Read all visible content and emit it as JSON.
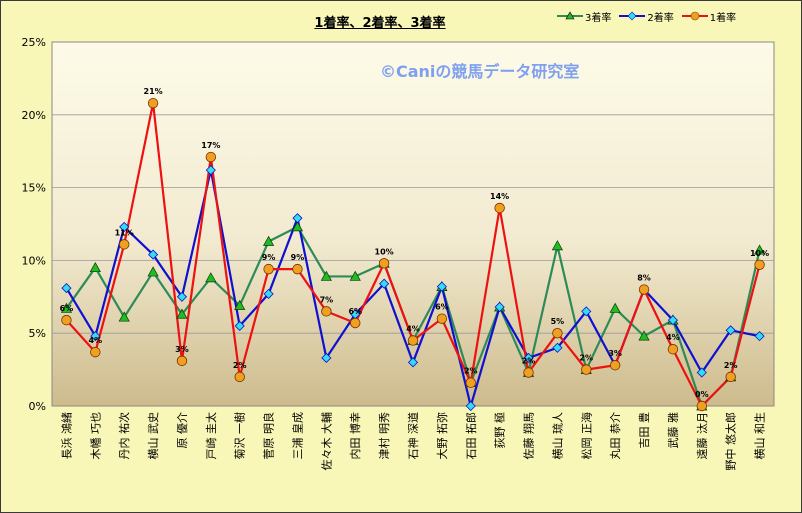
{
  "chart_data": {
    "type": "line",
    "title": "1着率、2着率、3着率",
    "watermark": "©Caniの競馬データ研究室",
    "ylim": [
      0,
      25
    ],
    "yticks": [
      "0%",
      "5%",
      "10%",
      "15%",
      "20%",
      "25%"
    ],
    "grid": "horizontal",
    "legend_position": "top-right",
    "categories": [
      "長浜 鴻緒",
      "木幡 巧也",
      "丹内 祐次",
      "横山 武史",
      "原 優介",
      "戸崎 圭太",
      "菊沢 一樹",
      "菅原 明良",
      "三浦 皇成",
      "佐々木 大輔",
      "内田 博幸",
      "津村 明秀",
      "石神 深道",
      "大野 拓弥",
      "石田 拓郎",
      "荻野 極",
      "佐藤 翔馬",
      "横山 琉人",
      "松岡 正海",
      "丸田 恭介",
      "吉田 豊",
      "武藤 雅",
      "遠藤 汰月",
      "野中 悠太郎",
      "横山 和生"
    ],
    "series": [
      {
        "name": "3着率",
        "color": "#2e8b57",
        "marker": "triangle",
        "values": [
          6.7,
          9.5,
          6.1,
          9.2,
          6.3,
          8.8,
          6.9,
          11.3,
          12.3,
          8.9,
          8.9,
          9.8,
          4.5,
          8.2,
          1.6,
          6.8,
          2.3,
          11.0,
          2.5,
          6.7,
          4.8,
          5.9,
          0.0,
          2.0,
          10.7
        ]
      },
      {
        "name": "2着率",
        "color": "#1010d0",
        "marker": "diamond",
        "values": [
          8.1,
          4.8,
          12.3,
          10.4,
          7.5,
          16.2,
          5.5,
          7.7,
          12.9,
          3.3,
          6.3,
          8.4,
          3.0,
          8.2,
          0.0,
          6.8,
          3.3,
          4.0,
          6.5,
          2.8,
          8.0,
          5.9,
          2.3,
          5.2,
          4.8
        ]
      },
      {
        "name": "1着率",
        "color": "#ee1111",
        "marker": "circle",
        "values": [
          5.9,
          3.7,
          11.1,
          20.8,
          3.1,
          17.1,
          2.0,
          9.4,
          9.4,
          6.5,
          5.7,
          9.8,
          4.5,
          6.0,
          1.6,
          13.6,
          2.3,
          5.0,
          2.5,
          2.8,
          8.0,
          3.9,
          0.0,
          2.0,
          9.7
        ]
      }
    ],
    "data_labels": [
      "6%",
      "4%",
      "11%",
      "21%",
      "3%",
      "17%",
      "2%",
      "9%",
      "9%",
      "7%",
      "6%",
      "10%",
      "4%",
      "6%",
      "2%",
      "14%",
      "2%",
      "5%",
      "2%",
      "3%",
      "8%",
      "4%",
      "0%",
      "2%",
      "10%"
    ]
  }
}
